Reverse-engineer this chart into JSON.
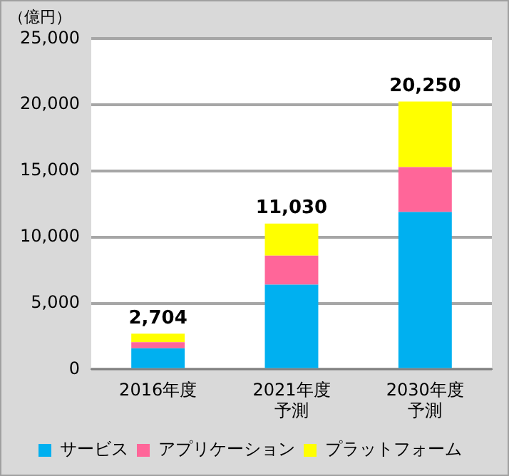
{
  "chart_data": {
    "type": "bar",
    "ylabel": "（億円）",
    "categories": [
      "2016年度",
      "2021年度予測",
      "2030年度予測"
    ],
    "stacked": true,
    "series": [
      {
        "name": "サービス",
        "color": "#00b0f0",
        "values": [
          1600,
          6400,
          11900
        ]
      },
      {
        "name": "アプリケーション",
        "color": "#ff6699",
        "values": [
          450,
          2200,
          3400
        ]
      },
      {
        "name": "プラットフォーム",
        "color": "#ffff00",
        "values": [
          654,
          2430,
          4950
        ]
      }
    ],
    "totals": [
      "2,704",
      "11,030",
      "20,250"
    ],
    "ylim": [
      0,
      25000
    ],
    "yticks": [
      {
        "value": 0,
        "label": "0"
      },
      {
        "value": 5000,
        "label": "5,000"
      },
      {
        "value": 10000,
        "label": "10,000"
      },
      {
        "value": 15000,
        "label": "15,000"
      },
      {
        "value": 20000,
        "label": "20,000"
      },
      {
        "value": 25000,
        "label": "25,000"
      }
    ],
    "grid": "y",
    "legend": "bottom"
  }
}
